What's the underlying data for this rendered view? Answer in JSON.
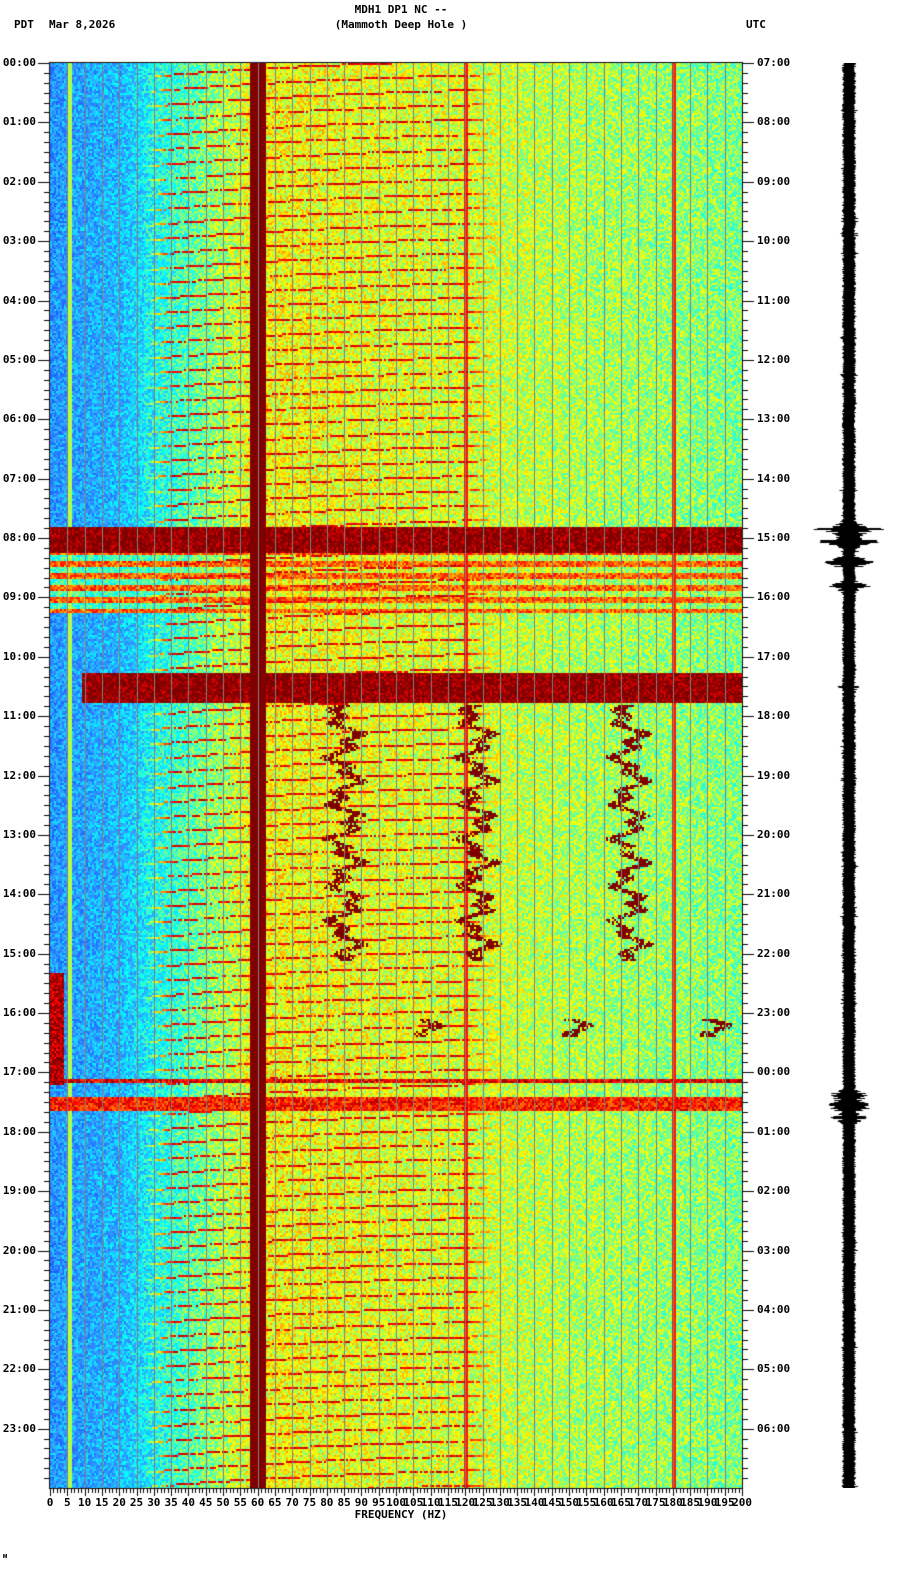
{
  "header": {
    "station": "MDH1 DP1 NC --",
    "site": "(Mammoth Deep Hole )",
    "tz_left": "PDT",
    "date": "Mar 8,2026",
    "tz_right": "UTC"
  },
  "footer": {
    "mark": "ᴍ"
  },
  "colors": {
    "background": "#ffffff",
    "axis": "#000000",
    "gridline": "#808080",
    "colormap": [
      "#0000c8",
      "#1e64ff",
      "#32a0ff",
      "#00ffff",
      "#80ff80",
      "#ffff00",
      "#ff8000",
      "#ff0000",
      "#800000"
    ]
  },
  "chart_data": {
    "type": "heatmap",
    "title": "MDH1 DP1 NC -- (Mammoth Deep Hole )",
    "subtitle": "Mar 8,2026",
    "xlabel": "FREQUENCY (HZ)",
    "ylabel_left": "PDT",
    "ylabel_right": "UTC",
    "xlim": [
      0,
      200
    ],
    "ylim_hours": [
      0,
      24
    ],
    "x_ticks": [
      0,
      5,
      10,
      15,
      20,
      25,
      30,
      35,
      40,
      45,
      50,
      55,
      60,
      65,
      70,
      75,
      80,
      85,
      90,
      95,
      100,
      105,
      110,
      115,
      120,
      125,
      130,
      135,
      140,
      145,
      150,
      155,
      160,
      165,
      170,
      175,
      180,
      185,
      190,
      195,
      200
    ],
    "y_ticks_left": [
      "00:00",
      "01:00",
      "02:00",
      "03:00",
      "04:00",
      "05:00",
      "06:00",
      "07:00",
      "08:00",
      "09:00",
      "10:00",
      "11:00",
      "12:00",
      "13:00",
      "14:00",
      "15:00",
      "16:00",
      "17:00",
      "18:00",
      "19:00",
      "20:00",
      "21:00",
      "22:00",
      "23:00"
    ],
    "y_ticks_right": [
      "07:00",
      "08:00",
      "09:00",
      "10:00",
      "11:00",
      "12:00",
      "13:00",
      "14:00",
      "15:00",
      "16:00",
      "17:00",
      "18:00",
      "19:00",
      "20:00",
      "21:00",
      "22:00",
      "23:00",
      "00:00",
      "01:00",
      "02:00",
      "03:00",
      "04:00",
      "05:00",
      "06:00"
    ],
    "minor_ticks_per_hour": 6,
    "grid": {
      "vertical_every_hz": 5,
      "horizontal": false
    },
    "background_level_by_freq": [
      {
        "hz": 0,
        "level": 0.22
      },
      {
        "hz": 20,
        "level": 0.28
      },
      {
        "hz": 35,
        "level": 0.42
      },
      {
        "hz": 60,
        "level": 0.62
      },
      {
        "hz": 120,
        "level": 0.58
      },
      {
        "hz": 200,
        "level": 0.5
      }
    ],
    "persistent_lines_hz": [
      {
        "hz": 60,
        "level": 1.0,
        "width_hz": 2.2
      },
      {
        "hz": 120,
        "level": 0.85,
        "width_hz": 0.4
      },
      {
        "hz": 180,
        "level": 0.85,
        "width_hz": 0.35
      },
      {
        "hz": 5.5,
        "level": 0.55,
        "width_hz": 0.3
      }
    ],
    "chirp_harmonics": {
      "period_hours": 0.25,
      "start_hz": 20,
      "end_hz": 120,
      "level": 0.9,
      "active_hours": [
        [
          0,
          24
        ]
      ]
    },
    "events": [
      {
        "name": "broadband-noise",
        "t_start": 7.8,
        "t_end": 8.25,
        "f_min": 0,
        "f_max": 200,
        "level": 1.0
      },
      {
        "name": "noisy-interval",
        "t_start": 8.25,
        "t_end": 9.25,
        "f_min": 0,
        "f_max": 200,
        "level": 0.78,
        "banded": true
      },
      {
        "name": "strong-broadband",
        "t_start": 10.25,
        "t_end": 10.75,
        "f_min": 9,
        "f_max": 200,
        "level": 1.0
      },
      {
        "name": "lowfreq-burst",
        "t_start": 15.3,
        "t_end": 17.2,
        "f_min": 0,
        "f_max": 4,
        "level": 0.95
      },
      {
        "name": "event-17h",
        "t_start": 17.1,
        "t_end": 17.15,
        "f_min": 0,
        "f_max": 200,
        "level": 0.9
      },
      {
        "name": "post-event",
        "t_start": 17.4,
        "t_end": 17.65,
        "f_min": 0,
        "f_max": 200,
        "level": 0.85
      }
    ],
    "wandering_tones": [
      {
        "t_start": 10.8,
        "t_end": 15.1,
        "f_center": [
          85,
          123,
          167
        ],
        "level": 1.0
      },
      {
        "t_start": 16.1,
        "t_end": 16.4,
        "f_center": [
          107,
          150,
          190
        ],
        "level": 1.0
      }
    ]
  },
  "seismogram": {
    "trace_x_center": 849,
    "baseline_half_width": 6,
    "bursts": [
      {
        "t": 7.85,
        "half_width": 40
      },
      {
        "t": 8.05,
        "half_width": 35
      },
      {
        "t": 8.4,
        "half_width": 30
      },
      {
        "t": 8.8,
        "half_width": 25
      },
      {
        "t": 10.5,
        "half_width": 12
      },
      {
        "t": 17.4,
        "half_width": 30
      },
      {
        "t": 17.55,
        "half_width": 35
      },
      {
        "t": 17.75,
        "half_width": 25
      }
    ]
  }
}
